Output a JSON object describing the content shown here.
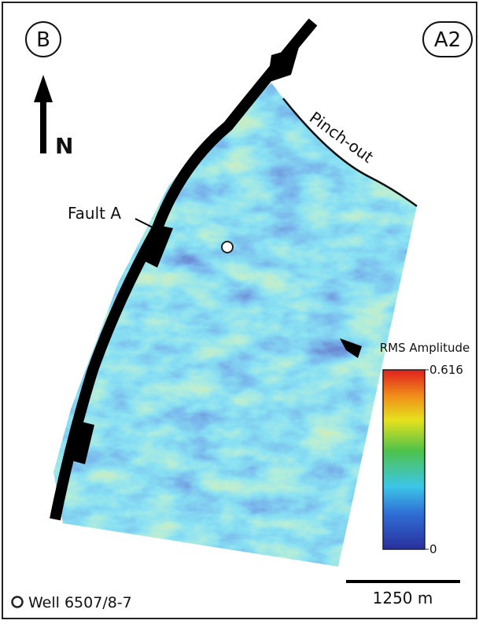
{
  "panel_label": "B",
  "figure_label": "A2",
  "north_label": "N",
  "annotations": {
    "fault": "Fault A",
    "pinch_out": "Pinch-out"
  },
  "colorbar": {
    "title": "RMS Amplitude",
    "range": [
      0,
      0.616
    ],
    "ticks": [
      0.616,
      0
    ]
  },
  "legend": {
    "well": "Well 6507/8-7"
  },
  "scale_bar": {
    "label": "1250 m"
  }
}
